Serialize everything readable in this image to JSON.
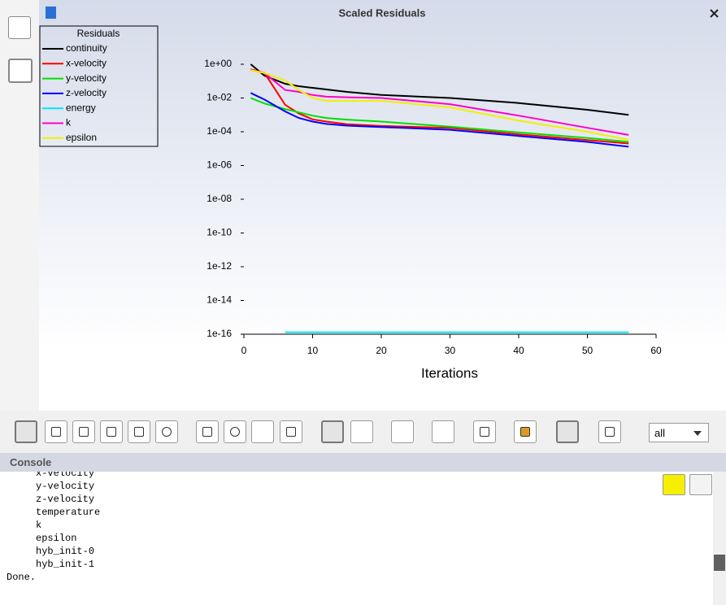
{
  "window": {
    "title": "Scaled Residuals"
  },
  "chart_data": {
    "type": "line",
    "legend_title": "Residuals",
    "xlabel": "Iterations",
    "log_y": true,
    "legend": "top-left",
    "x": [
      1,
      3,
      6,
      8,
      10,
      12,
      15,
      20,
      30,
      40,
      50,
      56
    ],
    "series": [
      {
        "name": "continuity",
        "color": "#000000",
        "values": [
          1,
          0.21,
          0.07,
          0.05,
          0.04,
          0.032,
          0.023,
          0.015,
          0.01,
          0.005,
          0.002,
          0.001
        ]
      },
      {
        "name": "x-velocity",
        "color": "#ff0000",
        "values": [
          0.5,
          0.3,
          0.004,
          0.0012,
          0.00054,
          0.0004,
          0.00028,
          0.00022,
          0.00017,
          7e-05,
          3.2e-05,
          2e-05
        ]
      },
      {
        "name": "y-velocity",
        "color": "#00e000",
        "values": [
          0.01,
          0.0047,
          0.0022,
          0.0014,
          0.0009,
          0.00065,
          0.00052,
          0.0004,
          0.0002,
          9e-05,
          4.3e-05,
          2.5e-05
        ]
      },
      {
        "name": "z-velocity",
        "color": "#0000ff",
        "values": [
          0.02,
          0.008,
          0.0016,
          0.00065,
          0.0004,
          0.00029,
          0.00023,
          0.00019,
          0.00013,
          5.6e-05,
          2.5e-05,
          1.3e-05
        ]
      },
      {
        "name": "energy",
        "color": "#00e5ff",
        "values": [
          null,
          null,
          1.3e-16,
          1.3e-16,
          1.3e-16,
          1.3e-16,
          1.3e-16,
          1.3e-16,
          1.3e-16,
          1.3e-16,
          1.3e-16,
          1.3e-16
        ]
      },
      {
        "name": "k",
        "color": "#ff00c8",
        "values": [
          0.45,
          0.3,
          0.03,
          0.023,
          0.015,
          0.012,
          0.011,
          0.01,
          0.0043,
          0.0009,
          0.00017,
          6.5e-05
        ]
      },
      {
        "name": "epsilon",
        "color": "#f0f000",
        "values": [
          0.45,
          0.3,
          0.11,
          0.03,
          0.01,
          0.0068,
          0.0068,
          0.0068,
          0.0028,
          0.00045,
          0.0001,
          3.3e-05
        ]
      }
    ],
    "xlim": [
      0,
      60
    ],
    "xticks": [
      0,
      10,
      20,
      30,
      40,
      50,
      60
    ],
    "ylim": [
      1e-16,
      1
    ],
    "yticks": [
      {
        "value": 1,
        "label": "1e+00"
      },
      {
        "value": 0.01,
        "label": "1e-02"
      },
      {
        "value": 0.0001,
        "label": "1e-04"
      },
      {
        "value": 1e-06,
        "label": "1e-06"
      },
      {
        "value": 1e-08,
        "label": "1e-08"
      },
      {
        "value": 1e-10,
        "label": "1e-10"
      },
      {
        "value": 1e-12,
        "label": "1e-12"
      },
      {
        "value": 1e-14,
        "label": "1e-14"
      },
      {
        "value": 1e-16,
        "label": "1e-16"
      }
    ]
  },
  "toolbar": {
    "view_select": "all"
  },
  "console": {
    "title": "Console",
    "lines": [
      "     x-velocity",
      "     y-velocity",
      "     z-velocity",
      "     temperature",
      "     k",
      "     epsilon",
      "     hyb_init-0",
      "     hyb_init-1",
      "Done."
    ]
  }
}
